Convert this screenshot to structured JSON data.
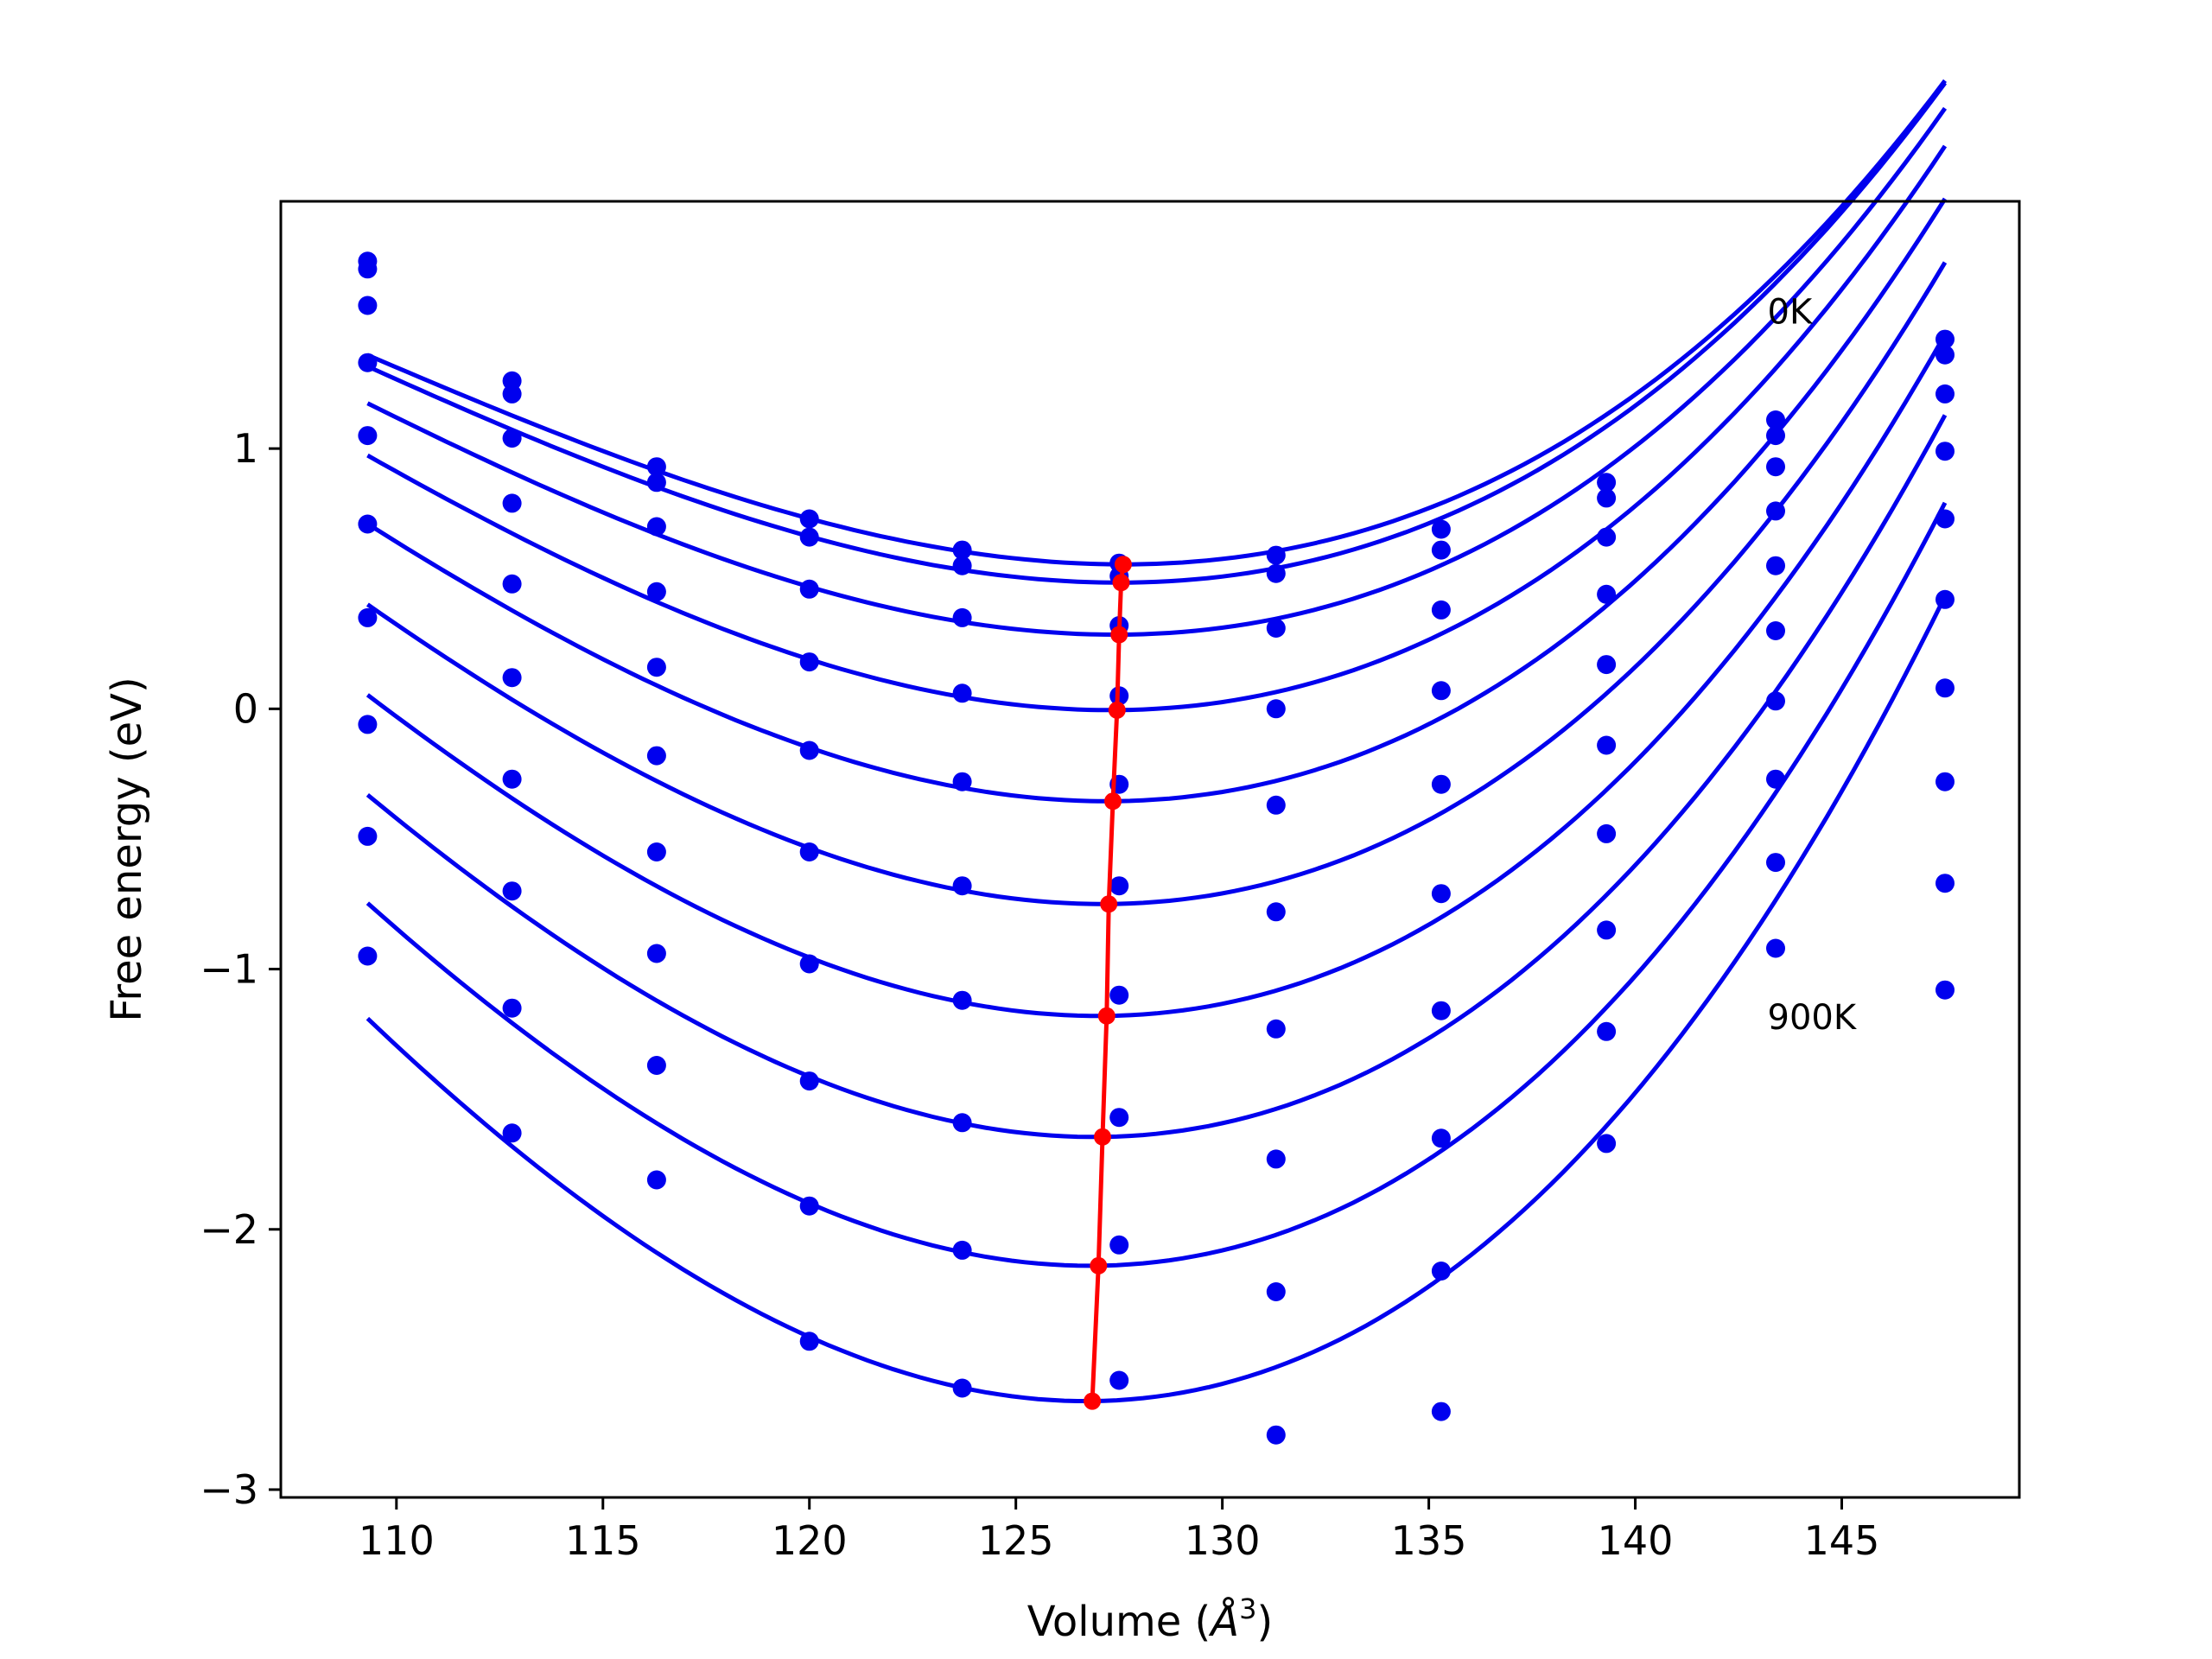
{
  "chart_data": {
    "type": "scatter",
    "title": "",
    "xlabel": "Volume (",
    "xlabel_symbol": "Å",
    "xlabel_exp": "3",
    "xlabel_close": ")",
    "ylabel": "Free energy (eV)",
    "xlim": [
      107.2,
      149.3
    ],
    "ylim": [
      -3.03,
      1.95
    ],
    "xticks": [
      110,
      115,
      120,
      125,
      130,
      135,
      140,
      145
    ],
    "xtick_labels": [
      "110",
      "115",
      "120",
      "125",
      "130",
      "135",
      "140",
      "145"
    ],
    "yticks": [
      -3,
      -2,
      -1,
      0,
      1
    ],
    "ytick_labels": [
      "−3",
      "−2",
      "−1",
      "0",
      "1"
    ],
    "grid": false,
    "annotations": [
      {
        "text": "0K",
        "x": 143.2,
        "y": 1.48
      },
      {
        "text": "900K",
        "x": 143.2,
        "y": -1.23
      }
    ],
    "volumes": [
      109.3,
      112.8,
      116.3,
      120.0,
      123.7,
      127.5,
      131.3,
      135.3,
      139.3,
      143.4,
      147.5
    ],
    "point_color": "#0000ee",
    "fit_color": "#0000ee",
    "min_color": "#ff0000",
    "series": [
      {
        "values": [
          1.72,
          1.26,
          0.93,
          0.73,
          0.61,
          0.56,
          0.59,
          0.69,
          0.87,
          1.11,
          1.42
        ],
        "fit": {
          "vmin": 127.6,
          "emin": 0.555,
          "a": 0.0035,
          "b": 6e-05
        }
      },
      {
        "values": [
          1.69,
          1.21,
          0.87,
          0.66,
          0.55,
          0.51,
          0.52,
          0.61,
          0.81,
          1.05,
          1.36
        ],
        "fit": {
          "vmin": 127.5,
          "emin": 0.485,
          "a": 0.0036,
          "b": 6e-05
        }
      },
      {
        "values": [
          1.55,
          1.04,
          0.7,
          0.46,
          0.35,
          0.32,
          0.31,
          0.38,
          0.66,
          0.93,
          1.21
        ],
        "fit": {
          "vmin": 127.4,
          "emin": 0.285,
          "a": 0.0038,
          "b": 6e-05
        }
      },
      {
        "values": [
          1.33,
          0.79,
          0.45,
          0.18,
          0.06,
          0.05,
          0.0,
          0.07,
          0.44,
          0.76,
          0.99
        ],
        "fit": {
          "vmin": 127.3,
          "emin": -0.005,
          "a": 0.0041,
          "b": 6e-05
        }
      },
      {
        "values": [
          1.05,
          0.48,
          0.16,
          -0.16,
          -0.28,
          -0.29,
          -0.37,
          -0.29,
          0.17,
          0.55,
          0.73
        ],
        "fit": {
          "vmin": 127.2,
          "emin": -0.355,
          "a": 0.0044,
          "b": 6e-05
        }
      },
      {
        "values": [
          0.71,
          0.12,
          -0.18,
          -0.55,
          -0.68,
          -0.68,
          -0.78,
          -0.71,
          -0.14,
          0.3,
          0.42
        ],
        "fit": {
          "vmin": 127.1,
          "emin": -0.75,
          "a": 0.0047,
          "b": 6e-05
        }
      },
      {
        "values": [
          0.35,
          -0.27,
          -0.55,
          -0.98,
          -1.12,
          -1.1,
          -1.23,
          -1.16,
          -0.48,
          0.03,
          0.08
        ],
        "fit": {
          "vmin": 127.0,
          "emin": -1.18,
          "a": 0.005,
          "b": 6e-05
        }
      },
      {
        "values": [
          -0.06,
          -0.7,
          -0.94,
          -1.43,
          -1.59,
          -1.57,
          -1.73,
          -1.65,
          -0.85,
          -0.27,
          -0.28
        ],
        "fit": {
          "vmin": 126.9,
          "emin": -1.645,
          "a": 0.0053,
          "b": 6e-05
        }
      },
      {
        "values": [
          -0.49,
          -1.15,
          -1.37,
          -1.91,
          -2.08,
          -2.06,
          -2.24,
          -2.16,
          -1.24,
          -0.59,
          -0.67
        ],
        "fit": {
          "vmin": 126.8,
          "emin": -2.14,
          "a": 0.0056,
          "b": 6e-05
        }
      },
      {
        "values": [
          -0.95,
          -1.63,
          -1.81,
          -2.43,
          -2.61,
          -2.58,
          -2.79,
          -2.7,
          -1.67,
          -0.92,
          -1.08
        ],
        "fit": {
          "vmin": 126.7,
          "emin": -2.66,
          "a": 0.0059,
          "b": 6e-05
        }
      }
    ],
    "equilibrium_line": {
      "x": [
        126.85,
        127.0,
        127.1,
        127.2,
        127.25,
        127.35,
        127.45,
        127.5,
        127.55,
        127.6
      ],
      "y": [
        -2.66,
        -2.14,
        -1.645,
        -1.18,
        -0.75,
        -0.355,
        -0.005,
        0.285,
        0.485,
        0.555
      ]
    }
  }
}
